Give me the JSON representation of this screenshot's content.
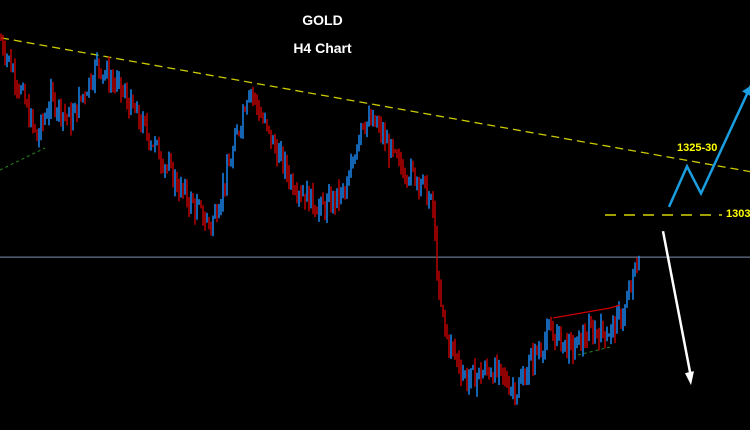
{
  "chart_data": {
    "type": "candlestick",
    "title": "GOLD",
    "subtitle": "H4 Chart",
    "price_range": [
      1230,
      1372
    ],
    "colors": {
      "background": "#000000",
      "up": "#1e90ff",
      "down": "#cc0000",
      "trendline": "#cccc00",
      "level": "#ffff00",
      "projection_up": "#1a9ee0",
      "projection_down": "#ffffff",
      "hline": "#8090b0"
    },
    "close_path": [
      {
        "bar": 0,
        "price": 1368
      },
      {
        "bar": 8,
        "price": 1353
      },
      {
        "bar": 18,
        "price": 1331
      },
      {
        "bar": 25,
        "price": 1346
      },
      {
        "bar": 35,
        "price": 1338
      },
      {
        "bar": 48,
        "price": 1359
      },
      {
        "bar": 60,
        "price": 1349
      },
      {
        "bar": 75,
        "price": 1331
      },
      {
        "bar": 90,
        "price": 1312
      },
      {
        "bar": 105,
        "price": 1299
      },
      {
        "bar": 115,
        "price": 1323
      },
      {
        "bar": 124,
        "price": 1351
      },
      {
        "bar": 133,
        "price": 1334
      },
      {
        "bar": 145,
        "price": 1316
      },
      {
        "bar": 160,
        "price": 1305
      },
      {
        "bar": 173,
        "price": 1312
      },
      {
        "bar": 180,
        "price": 1338
      },
      {
        "bar": 188,
        "price": 1336
      },
      {
        "bar": 198,
        "price": 1322
      },
      {
        "bar": 210,
        "price": 1316
      },
      {
        "bar": 216,
        "price": 1305
      },
      {
        "bar": 219,
        "price": 1272
      },
      {
        "bar": 223,
        "price": 1257
      },
      {
        "bar": 233,
        "price": 1242
      },
      {
        "bar": 245,
        "price": 1246
      },
      {
        "bar": 258,
        "price": 1238
      },
      {
        "bar": 265,
        "price": 1249
      },
      {
        "bar": 275,
        "price": 1260
      },
      {
        "bar": 285,
        "price": 1253
      },
      {
        "bar": 295,
        "price": 1260
      },
      {
        "bar": 305,
        "price": 1260
      },
      {
        "bar": 312,
        "price": 1268
      },
      {
        "bar": 320,
        "price": 1290
      }
    ],
    "trendline": {
      "from": {
        "bar": 0,
        "price": 1368.6
      },
      "to": {
        "bar": 375,
        "price": 1319
      }
    },
    "horizontal_line": 1287.4,
    "levels": [
      {
        "price": 1303,
        "label": "1303"
      }
    ],
    "zones": [
      {
        "label": "1325-30"
      }
    ],
    "projection_up": [
      {
        "bar": 334,
        "price": 1306
      },
      {
        "bar": 343,
        "price": 1321
      },
      {
        "bar": 350,
        "price": 1311
      },
      {
        "bar": 375,
        "price": 1351
      }
    ],
    "projection_down": [
      {
        "bar": 331,
        "price": 1297
      },
      {
        "bar": 345,
        "price": 1240
      }
    ]
  }
}
